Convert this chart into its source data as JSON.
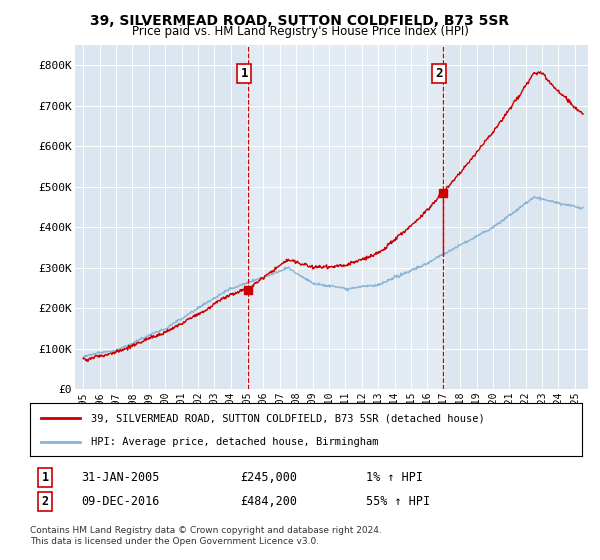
{
  "title": "39, SILVERMEAD ROAD, SUTTON COLDFIELD, B73 5SR",
  "subtitle": "Price paid vs. HM Land Registry's House Price Index (HPI)",
  "bg_color": "#dce6f0",
  "plot_bg_color": "#dce6f0",
  "highlight_bg_color": "#e8f0f8",
  "red_line_label": "39, SILVERMEAD ROAD, SUTTON COLDFIELD, B73 5SR (detached house)",
  "blue_line_label": "HPI: Average price, detached house, Birmingham",
  "annotation1": {
    "num": "1",
    "date": "31-JAN-2005",
    "price": "£245,000",
    "pct": "1% ↑ HPI"
  },
  "annotation2": {
    "num": "2",
    "date": "09-DEC-2016",
    "price": "£484,200",
    "pct": "55% ↑ HPI"
  },
  "footer": "Contains HM Land Registry data © Crown copyright and database right 2024.\nThis data is licensed under the Open Government Licence v3.0.",
  "ylim": [
    0,
    850000
  ],
  "yticks": [
    0,
    100000,
    200000,
    300000,
    400000,
    500000,
    600000,
    700000,
    800000
  ],
  "ytick_labels": [
    "£0",
    "£100K",
    "£200K",
    "£300K",
    "£400K",
    "£500K",
    "£600K",
    "£700K",
    "£800K"
  ],
  "sale1_x": 2005.08,
  "sale1_y": 245000,
  "sale2_x": 2016.94,
  "sale2_y": 484200,
  "hpi_color": "#8ab4d4",
  "sale_color": "#cc0000",
  "vline_color": "#cc0000",
  "xlim_min": 1994.5,
  "xlim_max": 2025.8
}
